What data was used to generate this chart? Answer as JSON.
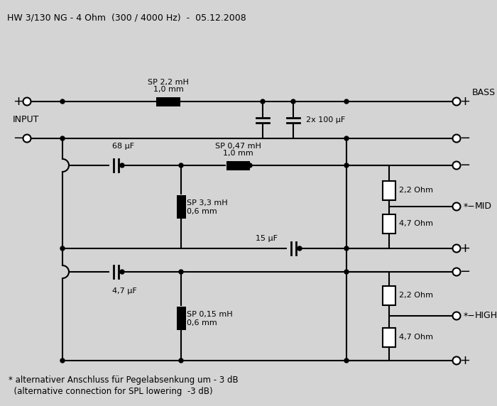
{
  "title": "HW 3/130 NG - 4 Ohm  (300 / 4000 Hz)  -  05.12.2008",
  "bg_color": "#d4d4d4",
  "line_color": "#000000",
  "text_color": "#000000",
  "footnote1": "* alternativer Anschluss für Pegelabsenkung um - 3 dB",
  "footnote2": "  (alternative connection for SPL lowering  -3 dB)"
}
